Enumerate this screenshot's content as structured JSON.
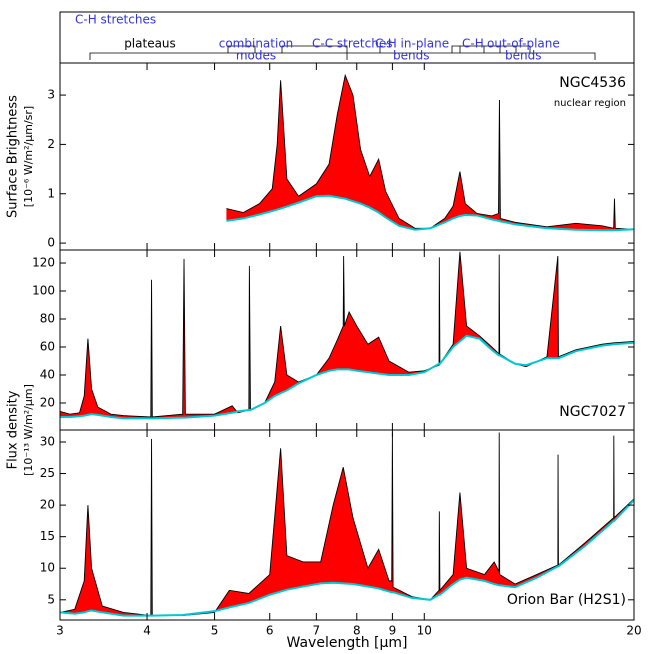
{
  "chart_data": [
    {
      "type": "area",
      "label": "NGC4536",
      "sublabel": "nuclear region",
      "ylabel": [
        "Surface Brightness",
        "[10⁻⁶ W/m²/μm/sr]"
      ],
      "xlog": true,
      "xlim": [
        3,
        20
      ],
      "xticks": [
        3,
        4,
        5,
        6,
        7,
        8,
        9,
        10,
        20
      ],
      "ylim": [
        -0.14,
        3.65
      ],
      "yticks": [
        0,
        1,
        2,
        3
      ],
      "fill_color": "#ff0000",
      "x": [
        5.2,
        5.5,
        5.8,
        6.05,
        6.15,
        6.22,
        6.35,
        6.6,
        7.0,
        7.3,
        7.5,
        7.7,
        7.9,
        8.1,
        8.35,
        8.6,
        8.8,
        9.2,
        9.7,
        10.2,
        10.7,
        11.0,
        11.25,
        11.45,
        11.9,
        12.5,
        12.78,
        12.82,
        12.86,
        13.5,
        15.0,
        16.5,
        18.0,
        18.7,
        18.75,
        18.8,
        20
      ],
      "series": [
        {
          "color": "#000000",
          "values": [
            0.7,
            0.62,
            0.8,
            1.1,
            2.0,
            3.3,
            1.3,
            0.95,
            1.2,
            1.6,
            2.6,
            3.4,
            3.0,
            1.9,
            1.35,
            1.7,
            1.05,
            0.5,
            0.3,
            0.3,
            0.5,
            0.75,
            1.45,
            0.8,
            0.6,
            0.55,
            0.6,
            2.9,
            0.5,
            0.42,
            0.33,
            0.4,
            0.35,
            0.3,
            0.9,
            0.3,
            0.28
          ]
        },
        {
          "color": "#00c8d2",
          "values": [
            0.45,
            0.5,
            0.58,
            0.65,
            0.68,
            0.7,
            0.74,
            0.82,
            0.95,
            0.96,
            0.93,
            0.9,
            0.85,
            0.8,
            0.72,
            0.62,
            0.52,
            0.35,
            0.27,
            0.3,
            0.42,
            0.5,
            0.55,
            0.57,
            0.56,
            0.48,
            0.45,
            0.45,
            0.44,
            0.38,
            0.3,
            0.27,
            0.26,
            0.26,
            0.26,
            0.26,
            0.28
          ]
        }
      ]
    },
    {
      "type": "area",
      "label": "NGC7027",
      "ylabel": [
        "Flux density",
        "[10⁻¹³ W/m²/μm]"
      ],
      "xlog": true,
      "xlim": [
        3,
        20
      ],
      "xticks": [
        3,
        4,
        5,
        6,
        7,
        8,
        9,
        10,
        20
      ],
      "ylim": [
        0.7,
        129.3
      ],
      "yticks": [
        20,
        40,
        60,
        80,
        100,
        120
      ],
      "fill_color": "#ff0000",
      "x": [
        3.0,
        3.1,
        3.2,
        3.25,
        3.29,
        3.33,
        3.4,
        3.55,
        3.7,
        4.05,
        4.06,
        4.07,
        4.5,
        4.52,
        4.54,
        5.0,
        5.3,
        5.4,
        5.6,
        5.61,
        5.63,
        5.9,
        6.1,
        6.22,
        6.35,
        6.6,
        7.0,
        7.3,
        7.5,
        7.65,
        7.66,
        7.68,
        7.8,
        8.0,
        8.3,
        8.6,
        8.9,
        9.5,
        10.0,
        10.5,
        10.51,
        10.53,
        11.0,
        11.25,
        11.5,
        12.0,
        12.5,
        12.8,
        12.81,
        12.83,
        13.5,
        14.0,
        15.0,
        15.55,
        15.58,
        16.5,
        18.0,
        18.7,
        20
      ],
      "series": [
        {
          "color": "#000000",
          "values": [
            14,
            12,
            13,
            25,
            66,
            30,
            17,
            12,
            11,
            10,
            108,
            10,
            12,
            123,
            12,
            12,
            18,
            13,
            15,
            118,
            15,
            20,
            35,
            75,
            40,
            35,
            40,
            52,
            65,
            75,
            125,
            75,
            85,
            75,
            62,
            67,
            50,
            42,
            43,
            47,
            124,
            48,
            62,
            128,
            75,
            68,
            60,
            55,
            126,
            55,
            48,
            46,
            53,
            125,
            53,
            58,
            62,
            63,
            64
          ]
        },
        {
          "color": "#00c8d2",
          "values": [
            10,
            10,
            10.5,
            11,
            11.5,
            12,
            11.5,
            10,
            9,
            9,
            9,
            9,
            9.5,
            9.5,
            9.5,
            11,
            13,
            14,
            15,
            15,
            15,
            20,
            25,
            27,
            29,
            34,
            40,
            43,
            44,
            44,
            44,
            44,
            44,
            43,
            42,
            41,
            40,
            40,
            42,
            48,
            48,
            48,
            60,
            64,
            68,
            66,
            58,
            54,
            54,
            54,
            48,
            47,
            52,
            52,
            52,
            57,
            61,
            62,
            63
          ]
        }
      ]
    },
    {
      "type": "area",
      "label": "Orion Bar (H2S1)",
      "xlabel": "Wavelength [μm]",
      "xlog": true,
      "xlim": [
        3,
        20
      ],
      "xticks": [
        3,
        4,
        5,
        6,
        7,
        8,
        9,
        10,
        20
      ],
      "ylim": [
        1.8,
        31.9
      ],
      "yticks": [
        5,
        10,
        15,
        20,
        25,
        30
      ],
      "fill_color": "#ff0000",
      "x": [
        3.0,
        3.15,
        3.25,
        3.29,
        3.33,
        3.45,
        3.7,
        4.05,
        4.06,
        4.07,
        4.5,
        5.0,
        5.25,
        5.6,
        6.0,
        6.22,
        6.35,
        6.7,
        7.1,
        7.4,
        7.65,
        7.9,
        8.3,
        8.6,
        8.9,
        8.98,
        9.0,
        9.02,
        9.6,
        10.2,
        10.5,
        10.51,
        10.53,
        11.0,
        11.25,
        11.5,
        12.2,
        12.6,
        12.8,
        12.81,
        12.83,
        13.5,
        14.5,
        15.55,
        15.56,
        15.58,
        17.0,
        18.7,
        18.71,
        18.73,
        20
      ],
      "series": [
        {
          "color": "#000000",
          "values": [
            3,
            3.5,
            8,
            20,
            10,
            4,
            3,
            2.5,
            30.5,
            2.5,
            2.5,
            3,
            6.5,
            6,
            9,
            29,
            12,
            11,
            11,
            20,
            26,
            18,
            10,
            13,
            8,
            8,
            31.5,
            7,
            5.5,
            5,
            6.5,
            19,
            6.5,
            9,
            22,
            10,
            9,
            11,
            9.5,
            31.5,
            9,
            7.5,
            9,
            10.5,
            28,
            10.5,
            14,
            18,
            31,
            18,
            21
          ]
        },
        {
          "color": "#00c8d2",
          "values": [
            3,
            2.8,
            3,
            3.2,
            3.3,
            3,
            2.5,
            2.5,
            2.5,
            2.5,
            2.6,
            3.2,
            3.8,
            4.5,
            5.8,
            6.3,
            6.6,
            7.1,
            7.6,
            7.7,
            7.6,
            7.5,
            7.1,
            6.8,
            6.3,
            6.2,
            6.2,
            6.2,
            5.3,
            5,
            5.8,
            5.8,
            5.8,
            7.5,
            8.2,
            8.5,
            8,
            7.5,
            7.3,
            7.3,
            7.3,
            7,
            8.5,
            10.3,
            10.3,
            10.3,
            13.5,
            17.5,
            17.5,
            17.5,
            20.8
          ]
        }
      ]
    }
  ],
  "annotations": [
    [
      "C-H stretches"
    ],
    [
      "plateaus"
    ],
    [
      "combination",
      "modes"
    ],
    [
      "C-C stretches"
    ],
    [
      "C-H in-plane",
      "bends"
    ],
    [
      "C-H"
    ],
    [
      "out-of-plane",
      "bends"
    ]
  ]
}
